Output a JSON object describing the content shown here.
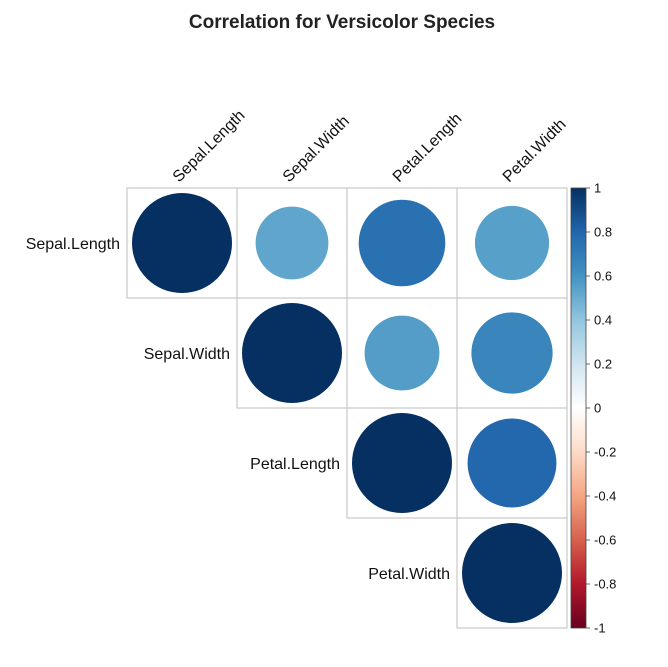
{
  "chart_data": {
    "type": "heatmap",
    "subtype": "correlation-circle-upper",
    "title": "Correlation for Versicolor Species",
    "variables": [
      "Sepal.Length",
      "Sepal.Width",
      "Petal.Length",
      "Petal.Width"
    ],
    "matrix": [
      [
        1.0,
        0.53,
        0.75,
        0.55
      ],
      [
        0.53,
        1.0,
        0.56,
        0.66
      ],
      [
        0.75,
        0.56,
        1.0,
        0.79
      ],
      [
        0.55,
        0.66,
        0.79,
        1.0
      ]
    ],
    "colorbar": {
      "range": [
        -1,
        1
      ],
      "ticks": [
        "1",
        "0.8",
        "0.6",
        "0.4",
        "0.2",
        "0",
        "-0.2",
        "-0.4",
        "-0.6",
        "-0.8",
        "-1"
      ],
      "palette": [
        "#67001F",
        "#B2182B",
        "#D6604D",
        "#F4A582",
        "#FDDBC7",
        "#FFFFFF",
        "#D1E5F0",
        "#92C5DE",
        "#4393C3",
        "#2166AC",
        "#053061"
      ]
    },
    "grid_color": "#BEBEBE"
  }
}
